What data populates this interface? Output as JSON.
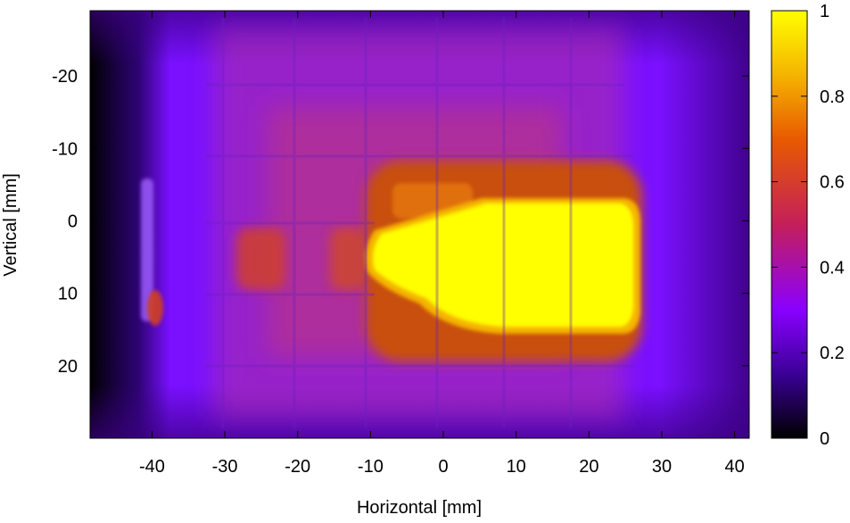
{
  "chart_data": {
    "type": "heatmap",
    "title": "",
    "xlabel": "Horizontal [mm]",
    "ylabel": "Vertical [mm]",
    "xlim": [
      -48.5,
      42
    ],
    "ylim": [
      30,
      -29
    ],
    "y_axis_inverted": true,
    "xticks": [
      -40,
      -30,
      -20,
      -10,
      0,
      10,
      20,
      30,
      40
    ],
    "yticks": [
      -20,
      -10,
      0,
      10,
      20
    ],
    "grid": false,
    "colorbar": {
      "range": [
        0,
        1
      ],
      "ticks": [
        0,
        0.2,
        0.4,
        0.6,
        0.8,
        1
      ],
      "tick_labels": [
        "0",
        "0.2",
        "0.4",
        "0.6",
        "0.8",
        "1"
      ],
      "colormap": [
        "#000000",
        "#3a0096",
        "#8a00ff",
        "#c41f5a",
        "#e85a00",
        "#f5b400",
        "#ffff00"
      ]
    },
    "regions": [
      {
        "name": "background",
        "x_range": [
          -48.5,
          42
        ],
        "y_range": [
          -29,
          30
        ],
        "level": 0.22
      },
      {
        "name": "left-dark-band",
        "x_range": [
          -48.5,
          -45
        ],
        "y_range": [
          -29,
          30
        ],
        "level": 0.03
      },
      {
        "name": "grid-cells-field",
        "x_range": [
          -33,
          22
        ],
        "y_range": [
          -27,
          27
        ],
        "level": 0.35
      },
      {
        "name": "orange-halo",
        "x_range": [
          -12,
          27
        ],
        "y_range": [
          -8,
          19
        ],
        "level": 0.6
      },
      {
        "name": "yellow-core",
        "x_range": [
          -11,
          27
        ],
        "y_range": [
          -3,
          16
        ],
        "level": 1.0
      },
      {
        "name": "left-cell-spot",
        "x_range": [
          -30,
          -22
        ],
        "y_range": [
          0,
          10
        ],
        "level": 0.45
      },
      {
        "name": "left-edge-strip",
        "x_range": [
          -41,
          -39
        ],
        "y_range": [
          -6,
          16
        ],
        "level": 0.3
      },
      {
        "name": "left-edge-spot",
        "x_range": [
          -41,
          -39
        ],
        "y_range": [
          8,
          13
        ],
        "level": 0.55
      }
    ]
  }
}
